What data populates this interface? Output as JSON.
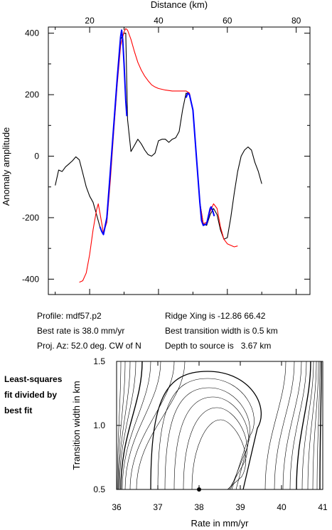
{
  "chart_data": [
    {
      "type": "line",
      "xlabel": "Distance (km)",
      "ylabel": "Anomaly amplitude",
      "xlim": [
        8,
        84
      ],
      "ylim": [
        -450,
        420
      ],
      "xticks": [
        20,
        40,
        60,
        80
      ],
      "xticks_minor": [
        10,
        30,
        50,
        70
      ],
      "yticks": [
        -400,
        -200,
        0,
        200,
        400
      ],
      "yticks_minor": [
        -300,
        -100,
        100,
        300
      ],
      "series": [
        {
          "color": "#000000",
          "points": [
            [
              10,
              -95
            ],
            [
              11,
              -45
            ],
            [
              12,
              -50
            ],
            [
              13,
              -35
            ],
            [
              14,
              -25
            ],
            [
              15,
              -15
            ],
            [
              16,
              -2
            ],
            [
              17,
              -12
            ],
            [
              18,
              -55
            ],
            [
              19,
              -100
            ],
            [
              20,
              -130
            ],
            [
              21,
              -150
            ],
            [
              22,
              -190
            ],
            [
              23,
              -230
            ],
            [
              24,
              -255
            ],
            [
              25,
              -200
            ],
            [
              26,
              -50
            ],
            [
              27,
              100
            ],
            [
              28,
              250
            ],
            [
              29,
              380
            ],
            [
              30,
              400
            ],
            [
              30.5,
              400
            ],
            [
              31,
              120
            ],
            [
              32,
              15
            ],
            [
              33,
              35
            ],
            [
              34,
              55
            ],
            [
              35,
              40
            ],
            [
              36,
              20
            ],
            [
              37,
              5
            ],
            [
              38,
              0
            ],
            [
              39,
              10
            ],
            [
              40,
              50
            ],
            [
              41,
              55
            ],
            [
              42,
              55
            ],
            [
              43,
              45
            ],
            [
              44,
              55
            ],
            [
              45,
              60
            ],
            [
              46,
              80
            ],
            [
              47,
              150
            ],
            [
              48,
              205
            ],
            [
              49,
              200
            ],
            [
              50,
              150
            ],
            [
              51,
              0
            ],
            [
              52,
              -150
            ],
            [
              53,
              -220
            ],
            [
              54,
              -225
            ],
            [
              55,
              -190
            ],
            [
              56,
              -170
            ],
            [
              57,
              -190
            ],
            [
              58,
              -240
            ],
            [
              59,
              -270
            ],
            [
              60,
              -265
            ],
            [
              61,
              -200
            ],
            [
              62,
              -120
            ],
            [
              63,
              -50
            ],
            [
              64,
              0
            ],
            [
              65,
              20
            ],
            [
              66,
              30
            ],
            [
              67,
              20
            ],
            [
              68,
              -20
            ],
            [
              69,
              -50
            ],
            [
              70,
              -90
            ]
          ]
        },
        {
          "color": "#ff0000",
          "points": [
            [
              17,
              -410
            ],
            [
              18,
              -405
            ],
            [
              19,
              -380
            ],
            [
              20,
              -320
            ],
            [
              21,
              -240
            ],
            [
              22,
              -175
            ],
            [
              22.5,
              -155
            ],
            [
              23,
              -185
            ],
            [
              24,
              -250
            ],
            [
              25,
              -215
            ],
            [
              26,
              -80
            ],
            [
              27,
              80
            ],
            [
              28,
              230
            ],
            [
              29,
              360
            ],
            [
              30,
              405
            ],
            [
              30.5,
              415
            ],
            [
              31,
              410
            ],
            [
              32,
              380
            ],
            [
              33,
              340
            ],
            [
              34,
              305
            ],
            [
              35,
              280
            ],
            [
              36,
              260
            ],
            [
              37,
              245
            ],
            [
              38,
              232
            ],
            [
              39,
              225
            ],
            [
              40,
              220
            ],
            [
              42,
              215
            ],
            [
              44,
              212
            ],
            [
              46,
              212
            ],
            [
              48,
              212
            ],
            [
              49,
              205
            ],
            [
              50,
              150
            ],
            [
              51,
              0
            ],
            [
              52,
              -150
            ],
            [
              53,
              -220
            ],
            [
              54,
              -215
            ],
            [
              55,
              -180
            ],
            [
              56,
              -155
            ],
            [
              57,
              -170
            ],
            [
              58,
              -230
            ],
            [
              59,
              -270
            ],
            [
              60,
              -285
            ],
            [
              61,
              -290
            ],
            [
              62,
              -295
            ],
            [
              63,
              -292
            ]
          ]
        },
        {
          "color": "#0000ff",
          "points": [
            [
              23,
              -230
            ],
            [
              23.5,
              -245
            ],
            [
              24,
              -255
            ],
            [
              25,
              -200
            ],
            [
              26,
              -50
            ],
            [
              27,
              100
            ],
            [
              28,
              250
            ],
            [
              29,
              390
            ],
            [
              29.3,
              410
            ],
            [
              29.6,
              380
            ],
            [
              30,
              300
            ],
            [
              30.5,
              180
            ],
            [
              30.8,
              130
            ]
          ]
        },
        {
          "color": "#0000ff",
          "points": [
            [
              48,
              190
            ],
            [
              48.5,
              205
            ],
            [
              49,
              200
            ],
            [
              50,
              150
            ],
            [
              51,
              0
            ],
            [
              52,
              -150
            ],
            [
              52.5,
              -210
            ],
            [
              53,
              -225
            ],
            [
              54,
              -220
            ],
            [
              55,
              -170
            ],
            [
              55.3,
              -165
            ],
            [
              55.8,
              -180
            ],
            [
              56.2,
              -195
            ]
          ]
        }
      ]
    },
    {
      "type": "contour",
      "xlabel": "Rate in mm/yr",
      "ylabel": "Transition width in km",
      "xlim": [
        36,
        41
      ],
      "ylim": [
        0.5,
        1.5
      ],
      "xticks": [
        36,
        37,
        38,
        39,
        40,
        41
      ],
      "yticks": [
        0.5,
        1.0,
        1.5
      ],
      "best_fit": {
        "rate": 38.0,
        "width": 0.5
      }
    }
  ],
  "info": {
    "profile": "Profile: mdf57.p2",
    "best_rate": "Best rate is 38.0 mm/yr",
    "proj_az": "Proj. Az: 52.0 deg. CW of N",
    "ridge_xing": "Ridge Xing is -12.86 66.42",
    "best_width": "Best transition width is 0.5 km",
    "depth": "Depth to source is   3.67 km"
  },
  "side_label": [
    "Least-squares",
    "fit divided by",
    "best fit"
  ]
}
